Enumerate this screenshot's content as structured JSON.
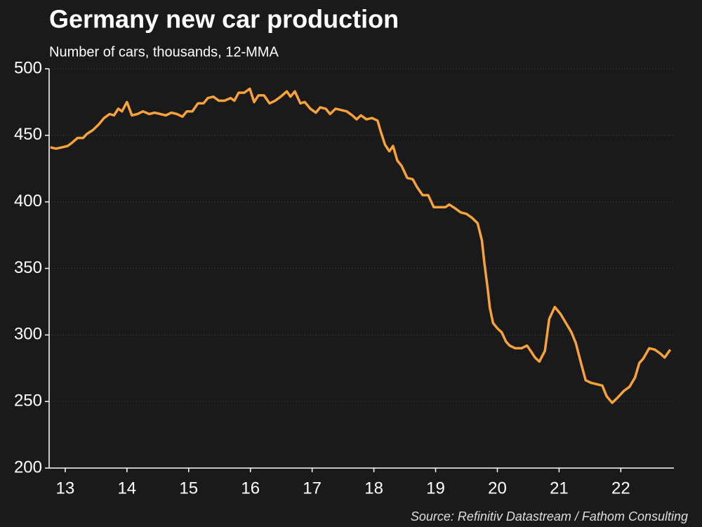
{
  "chart_data": {
    "type": "line",
    "title": "Germany new car production",
    "subtitle": "Number of cars, thousands, 12-MMA",
    "source": "Source: Refinitiv Datastream / Fathom Consulting",
    "xlim": [
      12.74,
      22.86
    ],
    "xticks": [
      13,
      14,
      15,
      16,
      17,
      18,
      19,
      20,
      21,
      22
    ],
    "ylim": [
      200,
      500
    ],
    "yticks": [
      200,
      250,
      300,
      350,
      400,
      450,
      500
    ],
    "grid": true,
    "x": [
      12.76,
      12.85,
      12.95,
      13.04,
      13.1,
      13.2,
      13.29,
      13.35,
      13.45,
      13.54,
      13.63,
      13.72,
      13.79,
      13.86,
      13.92,
      14.0,
      14.08,
      14.17,
      14.26,
      14.36,
      14.45,
      14.54,
      14.63,
      14.72,
      14.81,
      14.9,
      14.97,
      15.06,
      15.15,
      15.24,
      15.31,
      15.4,
      15.49,
      15.58,
      15.68,
      15.74,
      15.81,
      15.9,
      15.99,
      16.06,
      16.13,
      16.22,
      16.31,
      16.4,
      16.49,
      16.59,
      16.65,
      16.72,
      16.81,
      16.88,
      16.97,
      17.06,
      17.13,
      17.22,
      17.29,
      17.38,
      17.47,
      17.56,
      17.65,
      17.72,
      17.79,
      17.88,
      17.97,
      18.06,
      18.11,
      18.18,
      18.25,
      18.31,
      18.38,
      18.45,
      18.54,
      18.63,
      18.7,
      18.79,
      18.88,
      18.97,
      19.07,
      19.16,
      19.22,
      19.32,
      19.41,
      19.5,
      19.59,
      19.68,
      19.75,
      19.79,
      19.84,
      19.88,
      19.93,
      20.0,
      20.07,
      20.14,
      20.2,
      20.29,
      20.39,
      20.48,
      20.54,
      20.61,
      20.68,
      20.77,
      20.84,
      20.93,
      21.02,
      21.11,
      21.2,
      21.27,
      21.36,
      21.43,
      21.52,
      21.61,
      21.7,
      21.77,
      21.86,
      21.95,
      22.05,
      22.14,
      22.23,
      22.3,
      22.36,
      22.46,
      22.55,
      22.64,
      22.71,
      22.8
    ],
    "series": [
      {
        "name": "Germany new car production",
        "color": "#f7a23b",
        "values": [
          441,
          440,
          441,
          442,
          444,
          448,
          448,
          451,
          454,
          458,
          463,
          466,
          465,
          470,
          468,
          475,
          465,
          466,
          468,
          466,
          467,
          466,
          465,
          467,
          466,
          464,
          468,
          468,
          474,
          474,
          478,
          479,
          476,
          476,
          478,
          476,
          482,
          482,
          485,
          475,
          480,
          480,
          474,
          476,
          479,
          483,
          479,
          483,
          474,
          475,
          470,
          467,
          471,
          470,
          466,
          470,
          469,
          468,
          465,
          462,
          465,
          462,
          463,
          461,
          453,
          443,
          438,
          442,
          431,
          427,
          418,
          417,
          411,
          405,
          405,
          396,
          396,
          396,
          398,
          395,
          392,
          391,
          388,
          384,
          371,
          354,
          336,
          320,
          309,
          305,
          302,
          295,
          292,
          290,
          290,
          292,
          288,
          283,
          280,
          288,
          312,
          321,
          316,
          309,
          302,
          294,
          278,
          266,
          264,
          263,
          262,
          254,
          249,
          253,
          258,
          261,
          268,
          279,
          282,
          290,
          289,
          286,
          283,
          289
        ]
      }
    ]
  }
}
